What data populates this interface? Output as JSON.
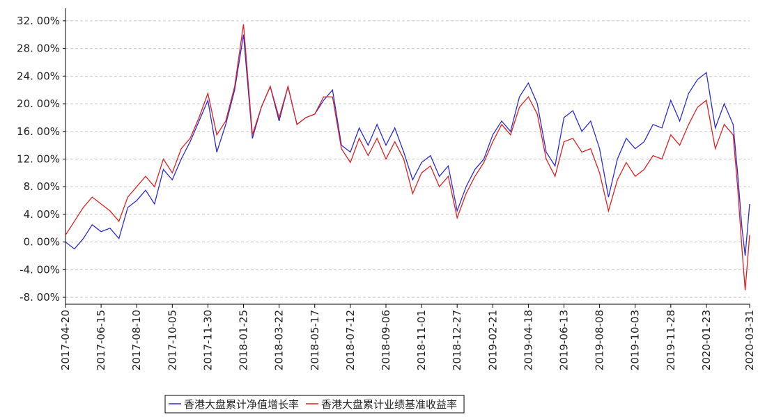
{
  "chart_data": {
    "type": "line",
    "x": [
      "2017-04-20",
      "2017-05-04",
      "2017-05-18",
      "2017-06-01",
      "2017-06-15",
      "2017-06-29",
      "2017-07-13",
      "2017-07-27",
      "2017-08-10",
      "2017-08-24",
      "2017-09-07",
      "2017-09-21",
      "2017-10-05",
      "2017-10-19",
      "2017-11-02",
      "2017-11-16",
      "2017-11-30",
      "2017-12-14",
      "2017-12-28",
      "2018-01-11",
      "2018-01-25",
      "2018-02-08",
      "2018-02-22",
      "2018-03-08",
      "2018-03-22",
      "2018-04-05",
      "2018-04-19",
      "2018-05-03",
      "2018-05-17",
      "2018-05-31",
      "2018-06-14",
      "2018-06-28",
      "2018-07-12",
      "2018-07-26",
      "2018-08-09",
      "2018-08-23",
      "2018-09-06",
      "2018-09-20",
      "2018-10-04",
      "2018-10-18",
      "2018-11-01",
      "2018-11-15",
      "2018-11-29",
      "2018-12-13",
      "2018-12-27",
      "2019-01-10",
      "2019-01-24",
      "2019-02-07",
      "2019-02-21",
      "2019-03-07",
      "2019-03-21",
      "2019-04-04",
      "2019-04-18",
      "2019-05-02",
      "2019-05-16",
      "2019-05-30",
      "2019-06-13",
      "2019-06-27",
      "2019-07-11",
      "2019-07-25",
      "2019-08-08",
      "2019-08-22",
      "2019-09-05",
      "2019-09-19",
      "2019-10-03",
      "2019-10-17",
      "2019-10-31",
      "2019-11-14",
      "2019-11-28",
      "2019-12-12",
      "2019-12-26",
      "2020-01-09",
      "2020-01-23",
      "2020-02-06",
      "2020-02-20",
      "2020-03-05",
      "2020-03-12",
      "2020-03-19",
      "2020-03-24",
      "2020-03-31"
    ],
    "series": [
      {
        "name": "香港大盘累计净值增长率",
        "color": "#2b2bd6",
        "values": [
          0.0,
          -1.0,
          0.5,
          2.5,
          1.5,
          2.0,
          0.5,
          5.0,
          6.0,
          7.5,
          5.5,
          10.5,
          9.0,
          12.0,
          14.5,
          17.5,
          20.5,
          13.0,
          17.0,
          22.0,
          30.0,
          15.0,
          19.5,
          22.5,
          17.5,
          22.5,
          17.0,
          18.0,
          18.5,
          20.5,
          22.0,
          14.0,
          13.0,
          16.5,
          14.0,
          17.0,
          14.0,
          16.5,
          13.0,
          9.0,
          11.5,
          12.5,
          9.5,
          11.0,
          4.5,
          8.0,
          10.5,
          12.0,
          15.5,
          17.5,
          16.0,
          21.0,
          23.0,
          20.0,
          13.0,
          11.0,
          18.0,
          19.0,
          16.0,
          17.5,
          13.5,
          6.5,
          12.0,
          15.0,
          13.5,
          14.5,
          17.0,
          16.5,
          20.5,
          17.5,
          21.5,
          23.5,
          24.5,
          16.5,
          20.0,
          17.0,
          10.0,
          2.0,
          -2.0,
          5.5
        ]
      },
      {
        "name": "香港大盘累计业绩基准收益率",
        "color": "#e02020",
        "values": [
          1.0,
          3.0,
          5.0,
          6.5,
          5.5,
          4.5,
          3.0,
          6.5,
          8.0,
          9.5,
          8.0,
          12.0,
          10.0,
          13.5,
          15.0,
          18.0,
          21.5,
          15.5,
          17.5,
          22.5,
          31.5,
          15.5,
          19.5,
          22.5,
          18.0,
          22.5,
          17.0,
          18.0,
          18.5,
          21.0,
          21.0,
          13.5,
          11.5,
          15.0,
          12.5,
          15.0,
          12.0,
          14.5,
          12.0,
          7.0,
          10.0,
          11.0,
          8.0,
          9.5,
          3.5,
          7.0,
          9.5,
          11.5,
          14.5,
          17.0,
          15.5,
          19.5,
          21.0,
          18.5,
          12.0,
          9.5,
          14.5,
          15.0,
          13.0,
          13.5,
          10.0,
          4.5,
          9.0,
          11.5,
          9.5,
          10.5,
          12.5,
          12.0,
          15.5,
          14.0,
          17.0,
          19.5,
          20.5,
          13.5,
          17.0,
          15.5,
          8.0,
          -1.0,
          -7.0,
          1.0
        ]
      }
    ],
    "xlim": [
      "2017-04-20",
      "2020-03-31"
    ],
    "xticks": [
      "2017-04-20",
      "2017-06-15",
      "2017-08-10",
      "2017-10-05",
      "2017-11-30",
      "2018-01-25",
      "2018-03-22",
      "2018-05-17",
      "2018-07-12",
      "2018-09-06",
      "2018-11-01",
      "2018-12-27",
      "2019-02-21",
      "2019-04-18",
      "2019-06-13",
      "2019-08-08",
      "2019-10-03",
      "2019-11-28",
      "2020-01-23",
      "2020-03-31"
    ],
    "ylim": [
      -9,
      33.8
    ],
    "yticks": [
      {
        "value": 32,
        "label": "32. 00%"
      },
      {
        "value": 28,
        "label": "28. 00%"
      },
      {
        "value": 24,
        "label": "24. 00%"
      },
      {
        "value": 20,
        "label": "20. 00%"
      },
      {
        "value": 16,
        "label": "16. 00%"
      },
      {
        "value": 12,
        "label": "12. 00%"
      },
      {
        "value": 8,
        "label": "8. 00%"
      },
      {
        "value": 4,
        "label": "4. 00%"
      },
      {
        "value": 0,
        "label": "0. 00%"
      },
      {
        "value": -4,
        "label": "-4. 00%"
      },
      {
        "value": -8,
        "label": "-8. 00%"
      }
    ],
    "grid": true
  }
}
